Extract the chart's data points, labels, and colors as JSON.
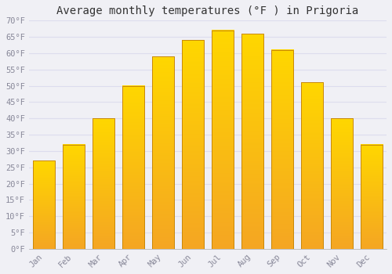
{
  "title": "Average monthly temperatures (°F ) in Prigoria",
  "months": [
    "Jan",
    "Feb",
    "Mar",
    "Apr",
    "May",
    "Jun",
    "Jul",
    "Aug",
    "Sep",
    "Oct",
    "Nov",
    "Dec"
  ],
  "values": [
    27,
    32,
    40,
    50,
    59,
    64,
    67,
    66,
    61,
    51,
    40,
    32
  ],
  "bar_color_bottom": "#F5A623",
  "bar_color_top": "#FFD700",
  "bar_edge_color": "#C8880A",
  "background_color": "#F0F0F5",
  "plot_bg_color": "#F0F0F5",
  "grid_color": "#DDDDEE",
  "ylim": [
    0,
    70
  ],
  "yticks": [
    0,
    5,
    10,
    15,
    20,
    25,
    30,
    35,
    40,
    45,
    50,
    55,
    60,
    65,
    70
  ],
  "ytick_labels": [
    "0°F",
    "5°F",
    "10°F",
    "15°F",
    "20°F",
    "25°F",
    "30°F",
    "35°F",
    "40°F",
    "45°F",
    "50°F",
    "55°F",
    "60°F",
    "65°F",
    "70°F"
  ],
  "title_fontsize": 10,
  "tick_fontsize": 7.5,
  "tick_color": "#888899",
  "font_family": "monospace",
  "bar_width": 0.75
}
